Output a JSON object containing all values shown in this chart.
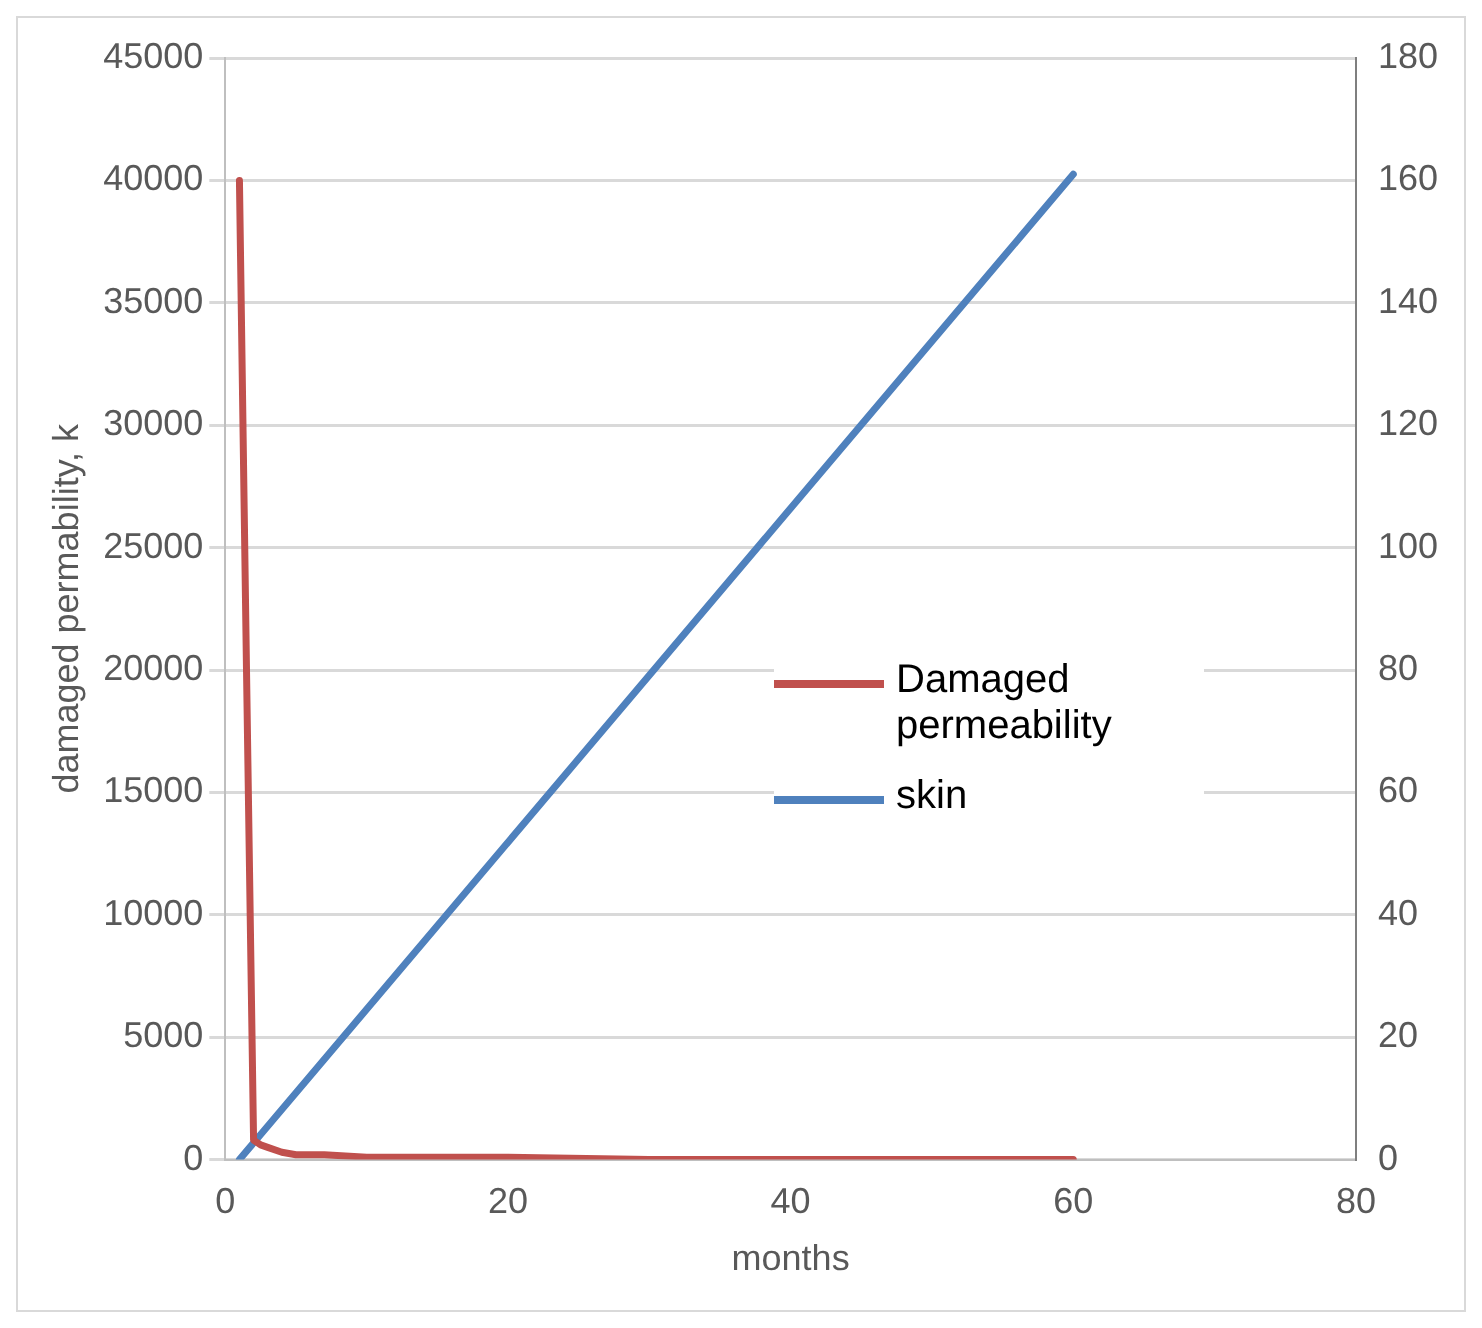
{
  "chart_data": {
    "type": "line",
    "xlabel": "months",
    "ylabel": "damaged permability, k",
    "xlim": [
      0,
      80
    ],
    "xticks": [
      0,
      20,
      40,
      60,
      80
    ],
    "ylim": [
      0,
      45000
    ],
    "yticks": [
      0,
      5000,
      10000,
      15000,
      20000,
      25000,
      30000,
      35000,
      40000,
      45000
    ],
    "y2lim": [
      0,
      180
    ],
    "y2ticks": [
      0,
      20,
      40,
      60,
      80,
      100,
      120,
      140,
      160,
      180
    ],
    "grid": "y",
    "legend": "right",
    "marker": "none",
    "line_style": "solid",
    "series": [
      {
        "name": "Damaged permeability",
        "color": "#c0504d",
        "x": [
          1,
          1.5,
          2,
          2.5,
          3,
          4,
          5,
          7,
          10,
          15,
          20,
          30,
          40,
          50,
          60
        ],
        "values": [
          40000,
          20000,
          800,
          600,
          500,
          300,
          200,
          200,
          100,
          100,
          100,
          0,
          0,
          0,
          0
        ]
      },
      {
        "name": "skin",
        "color": "#4f81bd",
        "axis": "y2",
        "x": [
          1,
          60
        ],
        "values": [
          0,
          161
        ]
      }
    ]
  }
}
